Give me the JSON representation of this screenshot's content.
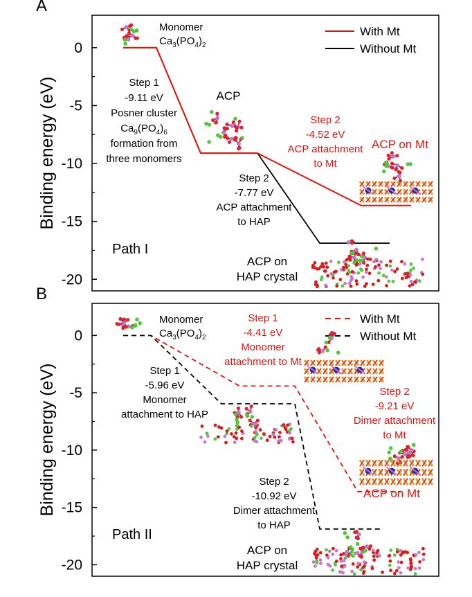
{
  "chart_data": [
    {
      "type": "line",
      "panel_label": "A",
      "path_label": "Path I",
      "ylabel": "Binding energy (eV)",
      "ylim": [
        -21,
        2.8
      ],
      "yticks": [
        0,
        -5,
        -10,
        -15,
        -20
      ],
      "grid": false,
      "legend_position": "top-right",
      "series": [
        {
          "name": "With Mt",
          "color": "#e8120c",
          "style": "solid",
          "points": [
            [
              0,
              0
            ],
            [
              1,
              0
            ],
            [
              2,
              -9.11
            ],
            [
              3,
              -9.11
            ],
            [
              4,
              -13.63
            ],
            [
              5,
              -13.63
            ]
          ]
        },
        {
          "name": "Without Mt",
          "color": "#000000",
          "style": "solid",
          "points": [
            [
              0,
              0
            ],
            [
              1,
              0
            ],
            [
              2,
              -9.11
            ],
            [
              3,
              -9.11
            ],
            [
              4,
              -16.88
            ],
            [
              5,
              -16.88
            ]
          ]
        }
      ],
      "annotations": {
        "monomer": [
          "Monomer",
          "Ca3(PO4)2"
        ],
        "step1": [
          "Step 1",
          "-9.11 eV",
          "Posner cluster",
          "Ca9(PO4)6",
          "formation from",
          "three monomers"
        ],
        "acp": "ACP",
        "step2_red": [
          "Step 2",
          "-4.52 eV",
          "ACP attachment",
          "to Mt"
        ],
        "acp_on_mt": "ACP on Mt",
        "step2_black": [
          "Step 2",
          "-7.77 eV",
          "ACP attachment",
          "to HAP"
        ],
        "acp_on_hap": [
          "ACP on",
          "HAP crystal"
        ]
      }
    },
    {
      "type": "line",
      "panel_label": "B",
      "path_label": "Path II",
      "ylabel": "Binding energy (eV)",
      "ylim": [
        -21,
        2.8
      ],
      "yticks": [
        0,
        -5,
        -10,
        -15,
        -20
      ],
      "grid": false,
      "legend_position": "top-right",
      "series": [
        {
          "name": "With Mt",
          "color": "#e8120c",
          "style": "dashed",
          "points": [
            [
              0,
              0
            ],
            [
              1,
              0
            ],
            [
              2,
              -4.41
            ],
            [
              3,
              -4.41
            ],
            [
              4,
              -13.62
            ],
            [
              5,
              -13.62
            ]
          ]
        },
        {
          "name": "Without Mt",
          "color": "#000000",
          "style": "dashed",
          "points": [
            [
              0,
              0
            ],
            [
              1,
              0
            ],
            [
              2,
              -5.96
            ],
            [
              3,
              -5.96
            ],
            [
              4,
              -16.88
            ],
            [
              5,
              -16.88
            ]
          ]
        }
      ],
      "annotations": {
        "monomer": [
          "Monomer",
          "Ca3(PO4)2"
        ],
        "step1_red": [
          "Step 1",
          "-4.41 eV",
          "Monomer",
          "attachment to Mt"
        ],
        "step1_black": [
          "Step 1",
          "-5.96 eV",
          "Monomer",
          "attachment to HAP"
        ],
        "step2_red": [
          "Step 2",
          "-9.21 eV",
          "Dimer attachment",
          "to Mt"
        ],
        "step2_black": [
          "Step 2",
          "-10.92 eV",
          "Dimer attachment",
          "to HAP"
        ],
        "acp_on_mt": "ACP on Mt",
        "acp_on_hap": [
          "ACP on",
          "HAP crystal"
        ]
      }
    }
  ]
}
